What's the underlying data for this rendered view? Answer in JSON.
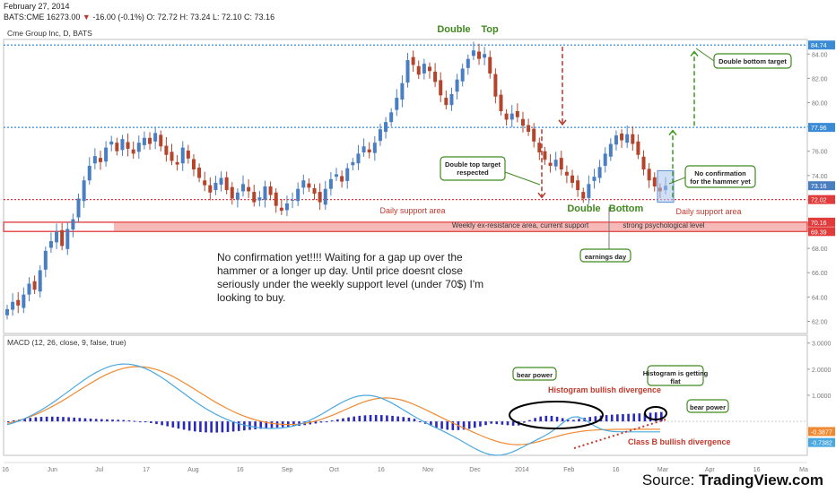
{
  "header": {
    "date": "February 27, 2014",
    "symbol": "BATS:CME",
    "last": "16273.00",
    "change": "-16.00 (-0.1%)",
    "ohlc_o": "O: 72.72",
    "ohlc_h": "H: 73.24",
    "ohlc_l": "L: 72.10",
    "ohlc_c": "C: 73.16"
  },
  "price_pane_label": "Cme Group Inc, D, BATS",
  "macd_pane_label": "MACD (12, 26, close, 9, false, true)",
  "source": {
    "prefix": "Source: ",
    "brand": "TradingView.com"
  },
  "colors": {
    "up": "#4a7ec2",
    "down": "#b5442c",
    "resistance_line": "#3a8bd6",
    "support_line": "#e23b3b",
    "zone_fill": "#f7b8b8",
    "annotation": "#3f8a1e",
    "divergence": "#c0392b",
    "macd_line": "#4aa8e0",
    "signal_line": "#f08a32",
    "histogram": "#2a2ab8",
    "arrow_red": "#b33a2a",
    "arrow_green": "#3f9a1e"
  },
  "chart_data": [
    {
      "type": "candlestick",
      "title": "Cme Group Inc, D, BATS",
      "ylim": [
        61,
        85.2
      ],
      "y_ticks": [
        "62.00",
        "64.00",
        "66.00",
        "68.00",
        "70.00",
        "72.00",
        "74.00",
        "76.00",
        "78.00",
        "80.00",
        "82.00",
        "84.00"
      ],
      "x_ticks": [
        "16",
        "Jun",
        "Jul",
        "17",
        "Aug",
        "16",
        "Sep",
        "Oct",
        "16",
        "Nov",
        "Dec",
        "2014",
        "Feb",
        "16",
        "Mar",
        "Apr",
        "16",
        "Ma"
      ],
      "closes": [
        63,
        63.6,
        63.3,
        64.2,
        65.1,
        64.6,
        66.2,
        67.8,
        68.6,
        69.4,
        68.2,
        69.6,
        70.4,
        72.1,
        73.6,
        74.8,
        75.6,
        75.1,
        76.3,
        76.8,
        76.0,
        77.0,
        76.2,
        75.8,
        76.7,
        77.1,
        76.6,
        77.5,
        76.4,
        75.7,
        75.2,
        74.9,
        76.3,
        75.4,
        74.5,
        73.8,
        73.2,
        72.6,
        73.4,
        73.8,
        72.8,
        72.1,
        72.6,
        73.3,
        72.7,
        71.8,
        72.2,
        73.1,
        72.4,
        71.5,
        71.1,
        71.7,
        72.0,
        72.9,
        73.6,
        73.0,
        72.5,
        71.8,
        72.9,
        73.7,
        74.1,
        73.5,
        74.6,
        75.1,
        75.8,
        76.4,
        75.9,
        76.7,
        77.8,
        78.4,
        79.2,
        80.4,
        81.6,
        83.5,
        83.1,
        82.3,
        83.2,
        82.6,
        81.7,
        80.6,
        79.8,
        80.7,
        81.9,
        82.8,
        83.6,
        84.3,
        83.6,
        84.0,
        82.4,
        80.5,
        79.3,
        78.6,
        79.1,
        78.8,
        78.1,
        77.6,
        76.8,
        75.9,
        75.3,
        74.8,
        75.3,
        74.5,
        74.0,
        73.4,
        72.8,
        72.1,
        73.3,
        73.9,
        74.7,
        75.8,
        76.6,
        77.3,
        76.9,
        77.4,
        76.6,
        75.7,
        74.5,
        73.6,
        73.1,
        72.7,
        73.16
      ],
      "annotations": [
        "Double",
        "Top",
        "Double top target respected",
        "Daily support area",
        "Double",
        "Bottom",
        "Daily support area",
        "earnings day",
        "Weekly ex-resistance area, current support",
        "strong psychological level",
        "Double bottom target",
        "No confirmation for the hammer yet"
      ],
      "levels": [
        {
          "name": "resistance",
          "value": 84.74,
          "label": "84.74",
          "style": "dotted",
          "color": "#3a8bd6"
        },
        {
          "name": "neckline",
          "value": 77.96,
          "label": "77.96",
          "style": "dotted",
          "color": "#3a8bd6"
        },
        {
          "name": "current",
          "value": 73.16,
          "label": "73.16"
        },
        {
          "name": "daily-support",
          "value": 72.02,
          "label": "72.02",
          "style": "dotted",
          "color": "#e23b3b"
        },
        {
          "name": "zone-top",
          "value": 70.16,
          "label": "70.16"
        },
        {
          "name": "zone-bottom",
          "value": 69.39,
          "label": "69.39"
        }
      ],
      "note": "No confirmation yet!!!! Waiting for a gap up over the hammer or a longer up day. Until price doesnt close seriously under the weekly support level (under 70$) I'm looking to buy."
    },
    {
      "type": "macd",
      "title": "MACD (12, 26, close, 9, false, true)",
      "ylim": [
        -1.3,
        3.3
      ],
      "y_ticks": [
        "1.0000",
        "2.0000",
        "3.0000"
      ],
      "values_shown": [
        "-0.3877",
        "-0.7382"
      ],
      "annotations": [
        "bear power",
        "Histogram bullish divergence",
        "Histogram is getting flat",
        "bear power",
        "Class B bullish divergence"
      ]
    }
  ]
}
